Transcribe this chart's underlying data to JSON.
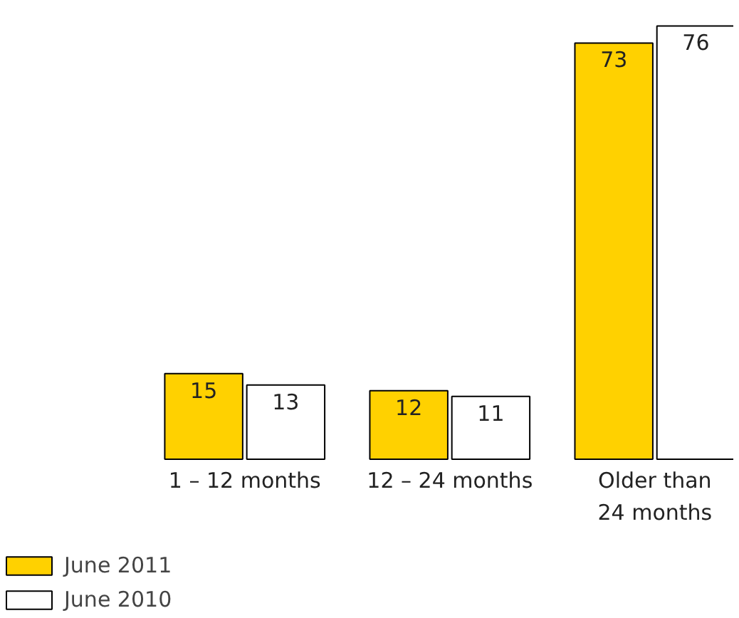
{
  "chart_data": {
    "type": "bar",
    "categories": [
      "1 – 12 months",
      "12 – 24 months",
      "Older than\n24 months"
    ],
    "series": [
      {
        "name": "June 2011",
        "color": "#ffd100",
        "values": [
          15,
          12,
          73
        ]
      },
      {
        "name": "June 2010",
        "color": "#ffffff",
        "values": [
          13,
          11,
          76
        ]
      }
    ],
    "data_labels": true,
    "legend": "bottom left"
  }
}
